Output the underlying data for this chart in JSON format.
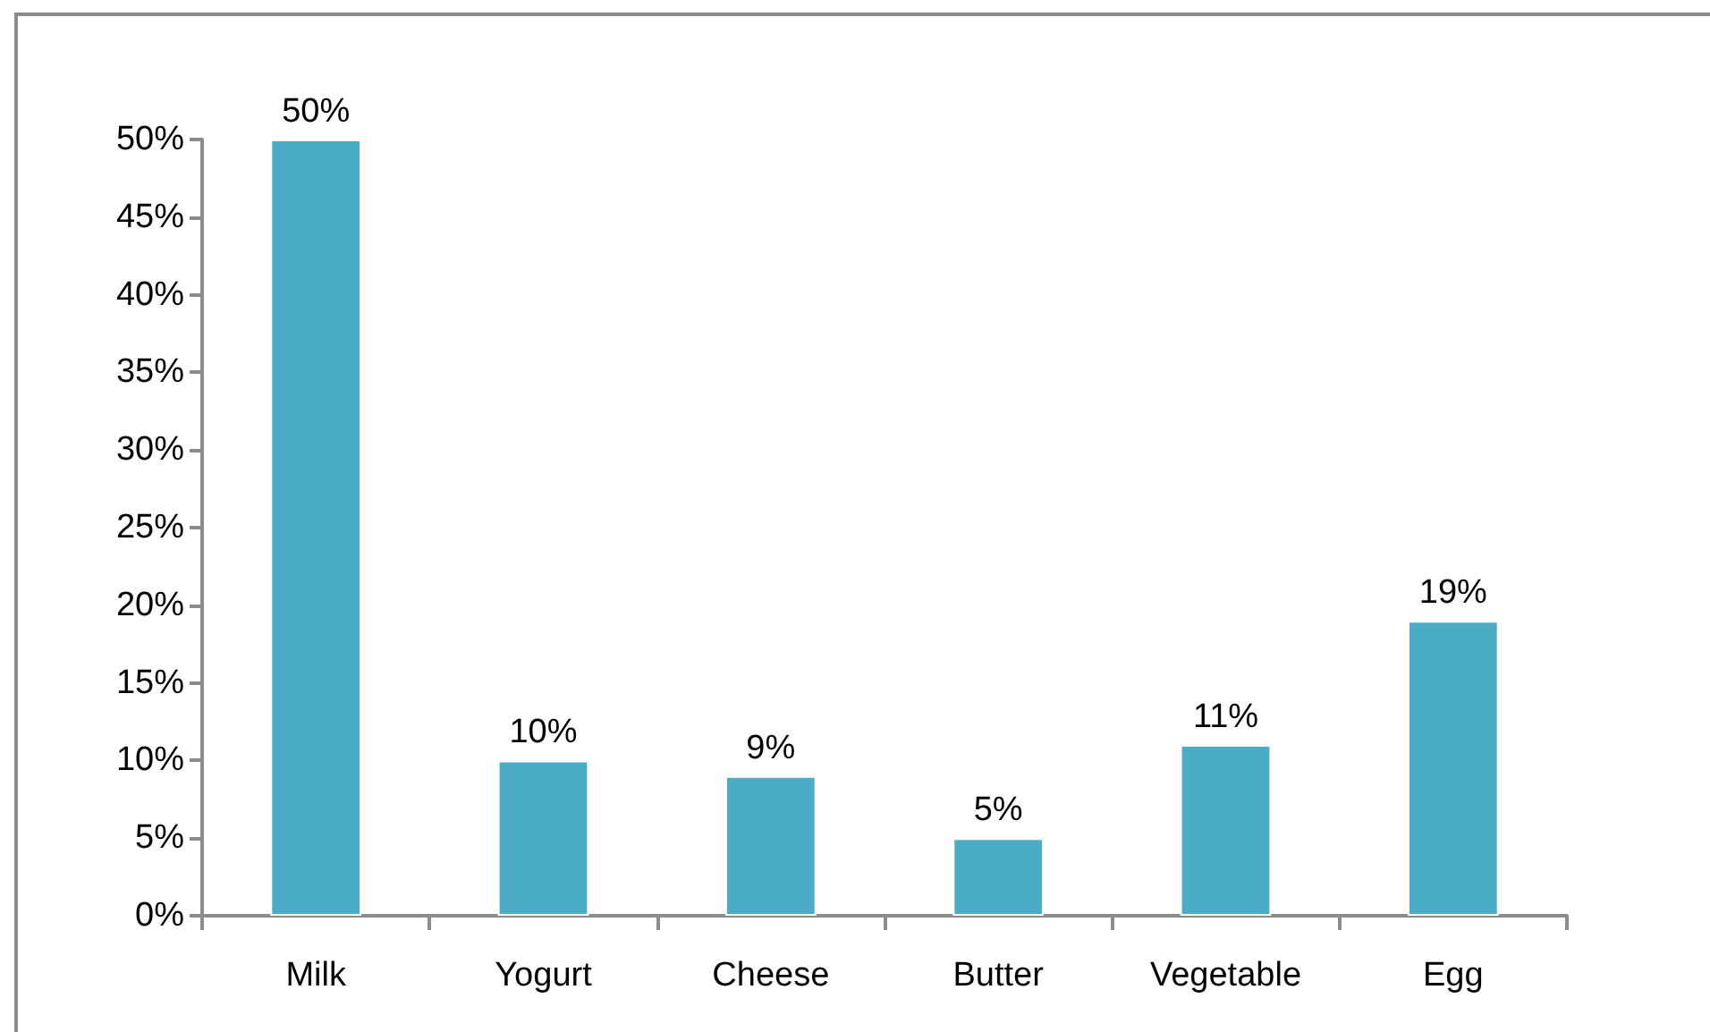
{
  "chart_data": {
    "type": "bar",
    "categories": [
      "Milk",
      "Yogurt",
      "Cheese",
      "Butter",
      "Vegetable",
      "Egg"
    ],
    "values": [
      50,
      10,
      9,
      5,
      11,
      19
    ],
    "color": "#4aacc6",
    "value_labels": [
      "50%",
      "10%",
      "9%",
      "5%",
      "11%",
      "19%"
    ],
    "ylim": [
      0,
      50
    ],
    "yticks": [
      {
        "value": 0,
        "label": "0%"
      },
      {
        "value": 5,
        "label": "5%"
      },
      {
        "value": 10,
        "label": "10%"
      },
      {
        "value": 15,
        "label": "15%"
      },
      {
        "value": 20,
        "label": "20%"
      },
      {
        "value": 25,
        "label": "25%"
      },
      {
        "value": 30,
        "label": "30%"
      },
      {
        "value": 35,
        "label": "35%"
      },
      {
        "value": 40,
        "label": "40%"
      },
      {
        "value": 45,
        "label": "45%"
      },
      {
        "value": 50,
        "label": "50%"
      }
    ]
  }
}
